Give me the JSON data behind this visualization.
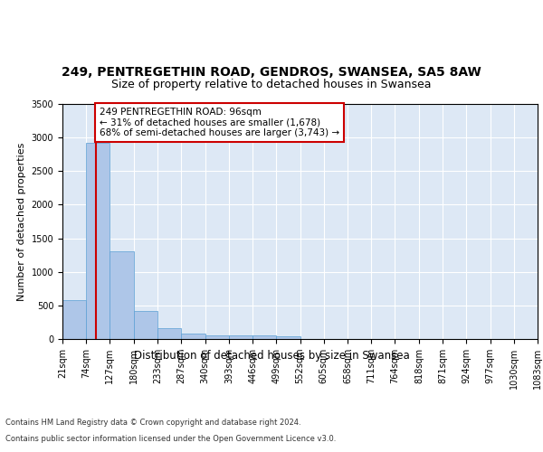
{
  "title1": "249, PENTREGETHIN ROAD, GENDROS, SWANSEA, SA5 8AW",
  "title2": "Size of property relative to detached houses in Swansea",
  "xlabel": "Distribution of detached houses by size in Swansea",
  "ylabel": "Number of detached properties",
  "footer1": "Contains HM Land Registry data © Crown copyright and database right 2024.",
  "footer2": "Contains public sector information licensed under the Open Government Licence v3.0.",
  "bar_edges": [
    21,
    74,
    127,
    180,
    233,
    287,
    340,
    393,
    446,
    499,
    552,
    605,
    658,
    711,
    764,
    818,
    871,
    924,
    977,
    1030,
    1083
  ],
  "bar_heights": [
    575,
    2920,
    1310,
    415,
    155,
    85,
    60,
    55,
    50,
    45,
    0,
    0,
    0,
    0,
    0,
    0,
    0,
    0,
    0,
    0
  ],
  "bar_color": "#aec6e8",
  "bar_edgecolor": "#5a9fd4",
  "property_line_x": 96,
  "property_line_color": "#cc0000",
  "annotation_text": "249 PENTREGETHIN ROAD: 96sqm\n← 31% of detached houses are smaller (1,678)\n68% of semi-detached houses are larger (3,743) →",
  "annotation_box_color": "#cc0000",
  "ylim": [
    0,
    3500
  ],
  "yticks": [
    0,
    500,
    1000,
    1500,
    2000,
    2500,
    3000,
    3500
  ],
  "background_color": "#dde8f5",
  "grid_color": "#ffffff",
  "title1_fontsize": 10,
  "title2_fontsize": 9,
  "xlabel_fontsize": 8.5,
  "ylabel_fontsize": 8,
  "annotation_fontsize": 7.5,
  "tick_fontsize": 7,
  "footer_fontsize": 6
}
